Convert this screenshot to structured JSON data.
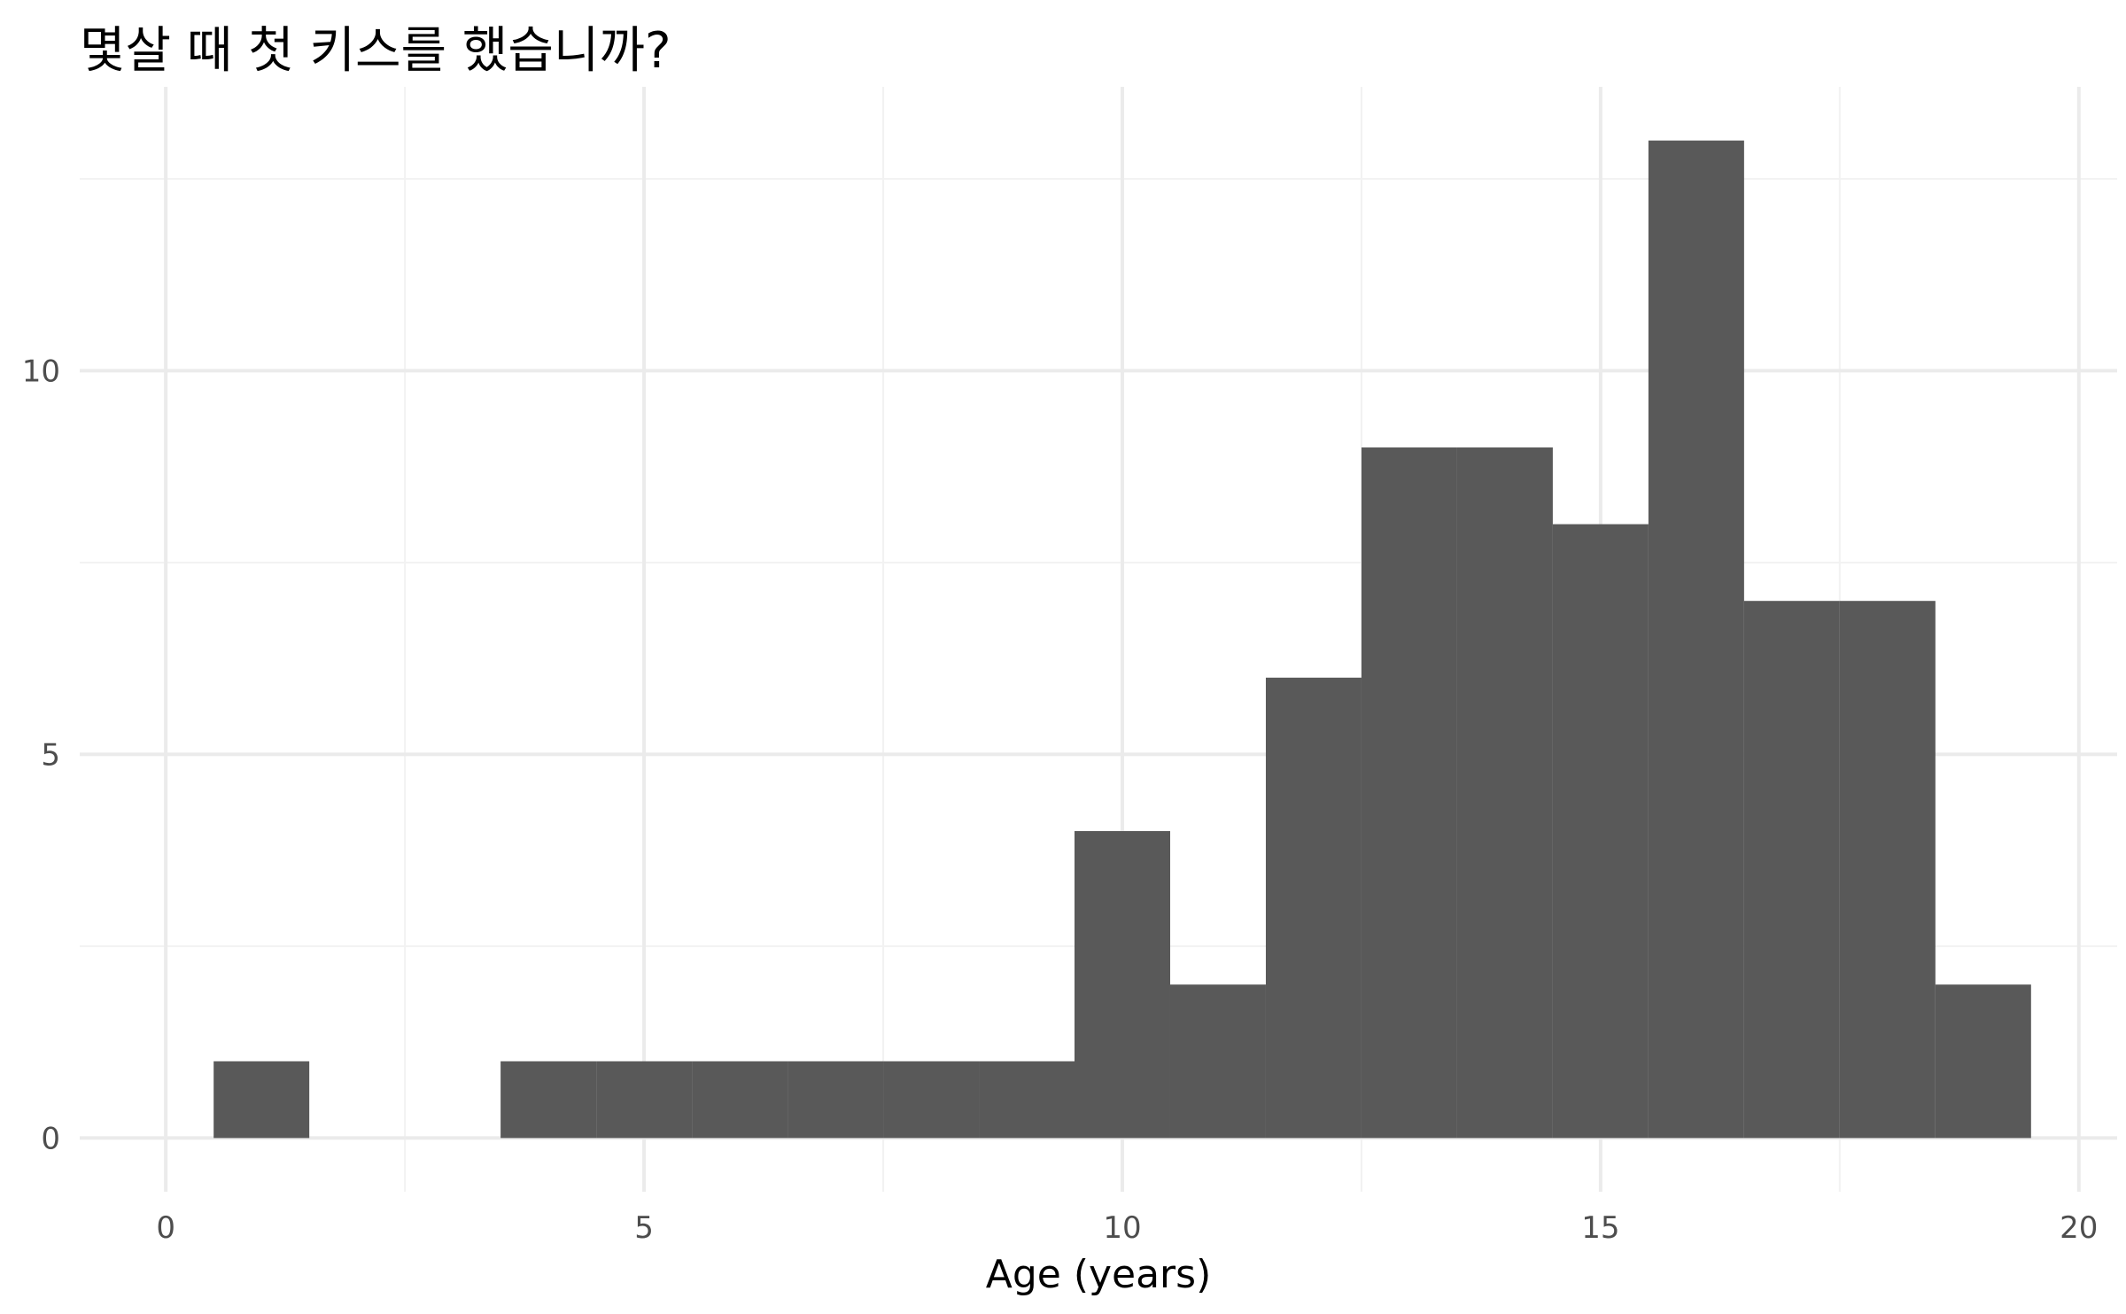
{
  "chart_data": {
    "type": "bar",
    "title": "몇살 때 첫 키스를 했습니까?",
    "xlabel": "Age (years)",
    "ylabel": "",
    "xlim": [
      -0.9,
      20.4
    ],
    "ylim": [
      -0.7,
      13.7
    ],
    "x_ticks": [
      0,
      5,
      10,
      15,
      20
    ],
    "x_tick_labels": [
      "0",
      "5",
      "10",
      "15",
      "20"
    ],
    "y_ticks": [
      0,
      5,
      10
    ],
    "y_tick_labels": [
      "0",
      "5",
      "10"
    ],
    "x_minor_grid": [
      2.5,
      7.5,
      12.5,
      17.5
    ],
    "y_minor_grid": [
      2.5,
      7.5,
      12.5
    ],
    "bin_width": 1,
    "x": [
      1,
      4,
      5,
      6,
      7,
      8,
      9,
      10,
      11,
      12,
      13,
      14,
      15,
      16,
      17,
      18,
      19
    ],
    "values": [
      1,
      1,
      1,
      1,
      1,
      1,
      1,
      4,
      2,
      6,
      9,
      9,
      8,
      13,
      7,
      7,
      2
    ],
    "grid": true,
    "legend": "none",
    "colors": {
      "bar": "#595959",
      "grid_major": "#ebebeb",
      "grid_minor": "#f2f2f2"
    }
  }
}
